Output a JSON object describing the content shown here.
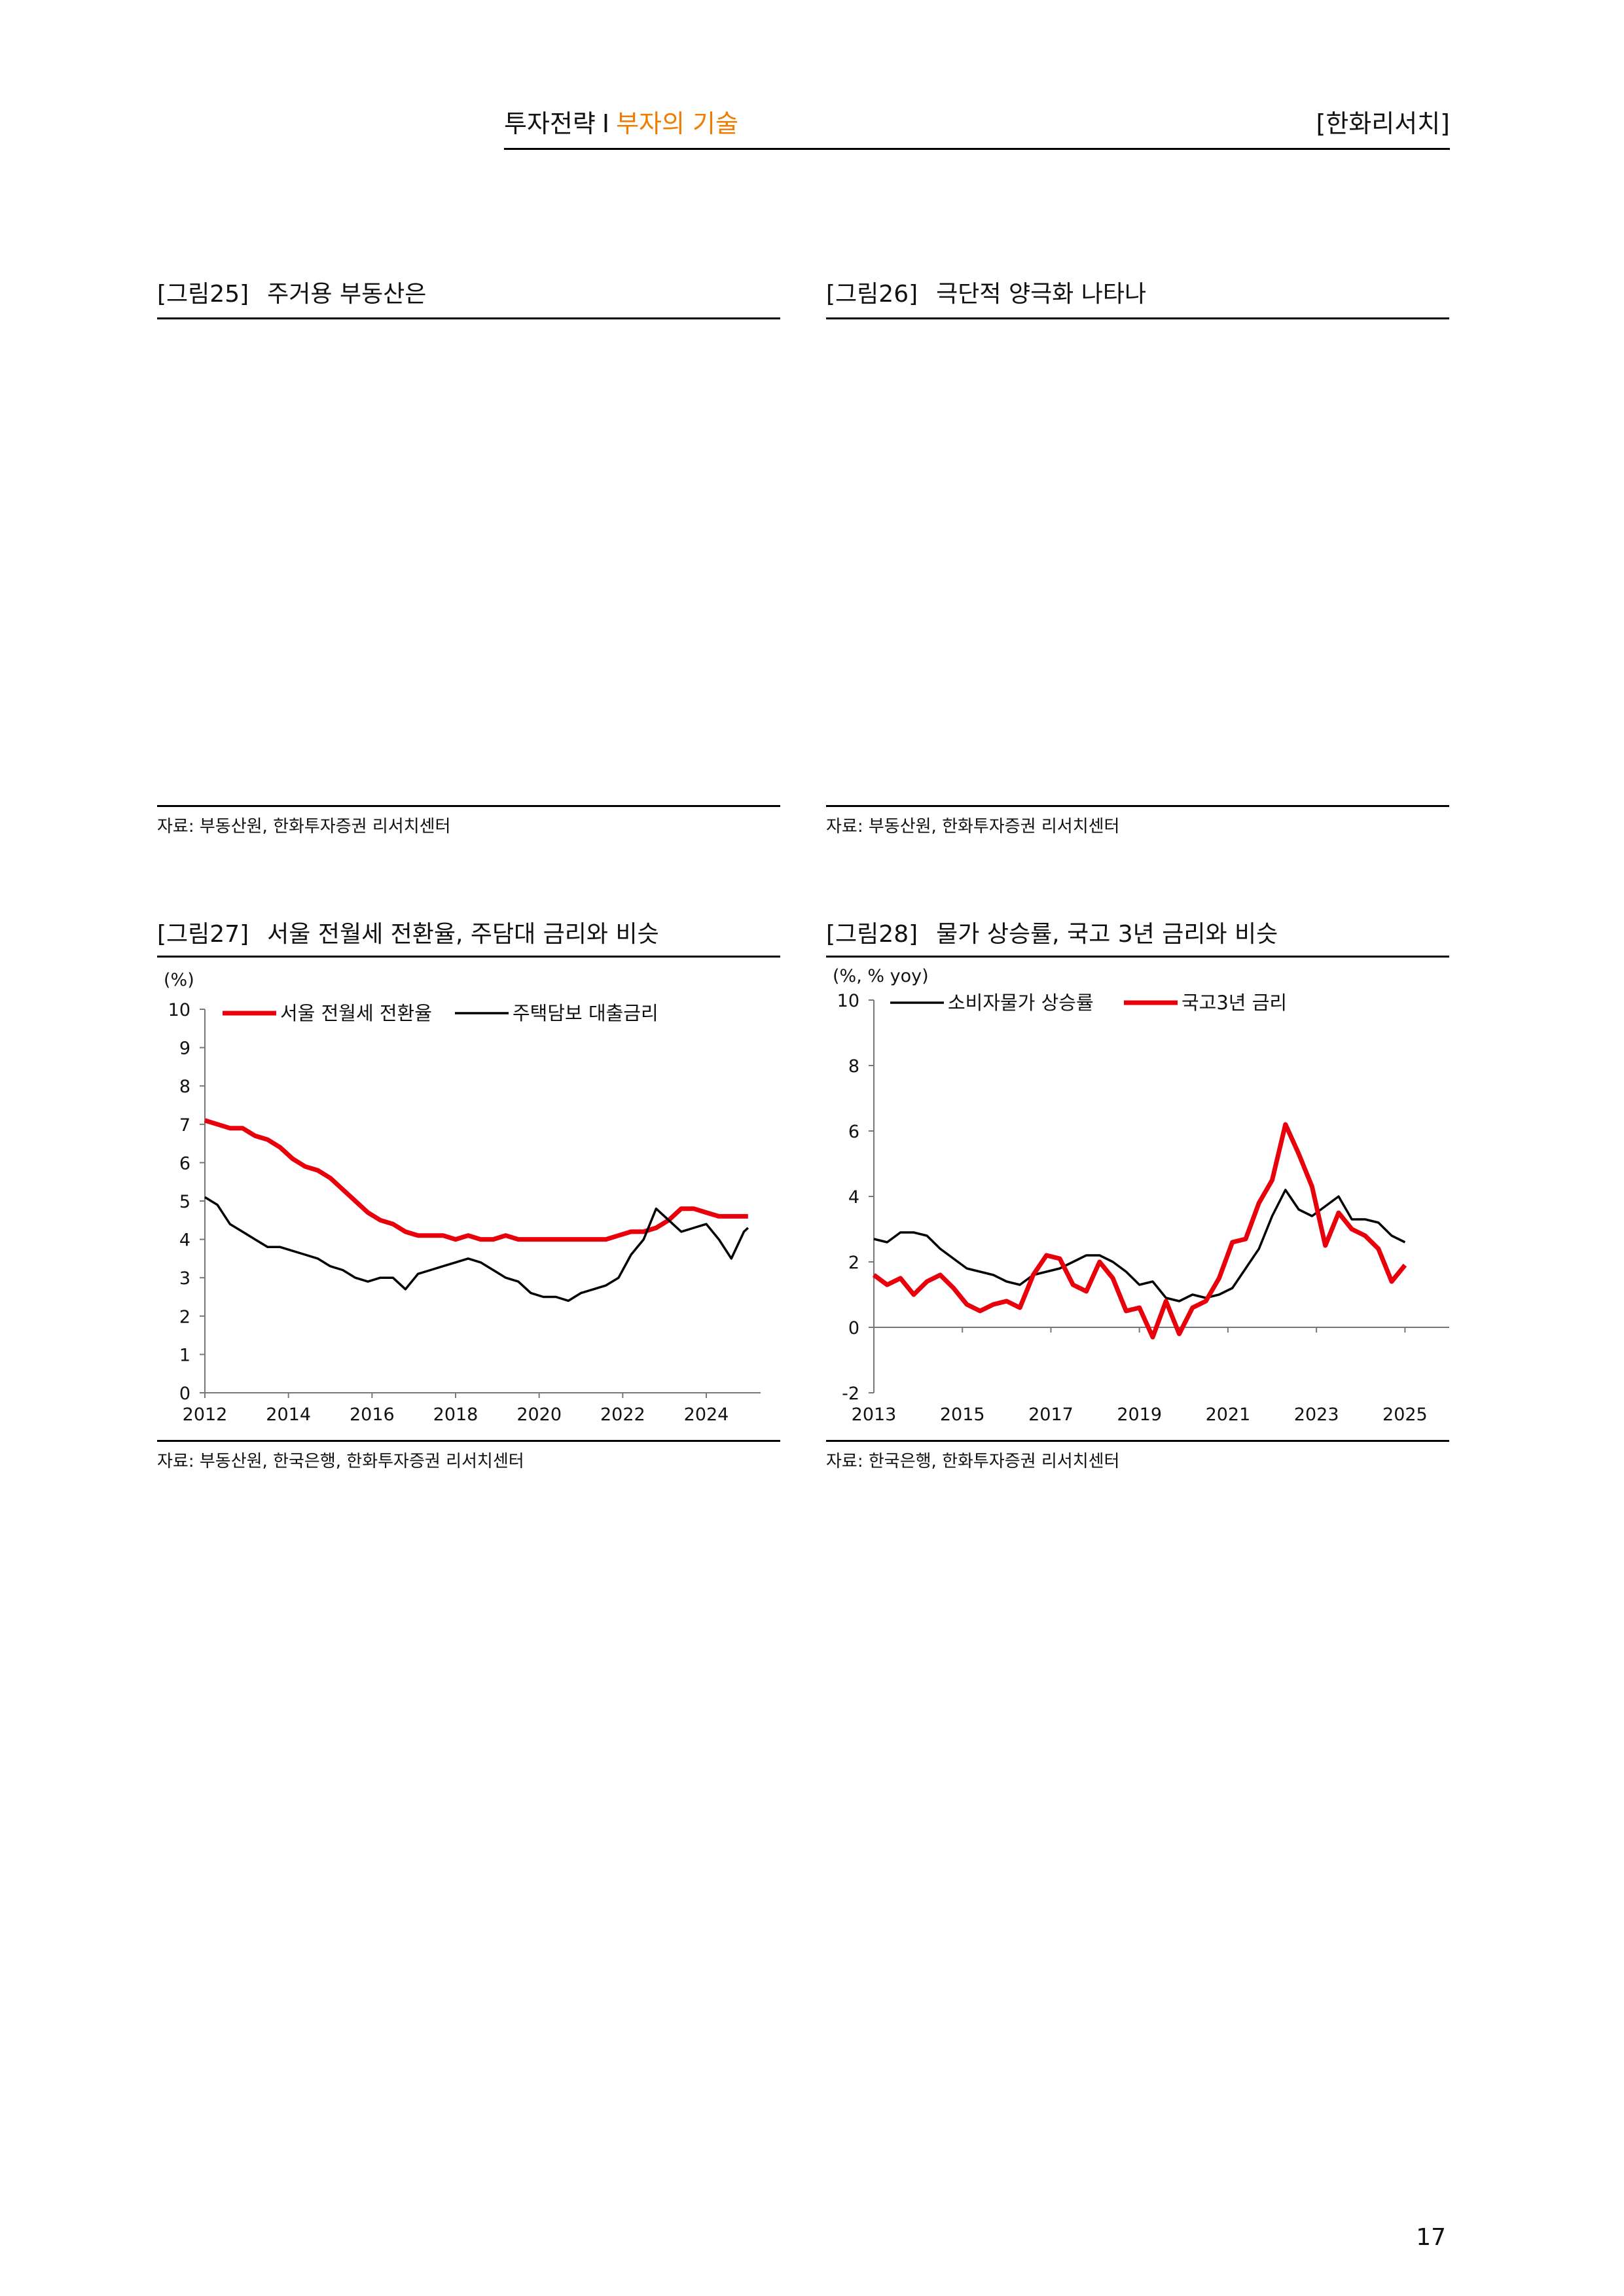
{
  "header": {
    "section": "투자전략",
    "separator": "I",
    "subtitle": "부자의 기술",
    "brand": "[한화리서치]"
  },
  "page_number": "17",
  "figures": [
    {
      "num": "[그림25]",
      "title": "주거용 부동산은",
      "source": "자료: 부동산원, 한화투자증권 리서치센터"
    },
    {
      "num": "[그림26]",
      "title": "극단적 양극화 나타나",
      "source": "자료: 부동산원, 한화투자증권 리서치센터"
    },
    {
      "num": "[그림27]",
      "title": "서울 전월세 전환율, 주담대 금리와 비슷",
      "source": "자료: 부동산원, 한국은행, 한화투자증권 리서치센터"
    },
    {
      "num": "[그림28]",
      "title": "물가 상승률, 국고 3년 금리와 비슷",
      "source": "자료: 한국은행, 한화투자증권 리서치센터"
    }
  ],
  "chart_data": [
    {
      "type": "line",
      "unit": "(%)",
      "ylim": [
        0,
        10
      ],
      "yticks": [
        0,
        1,
        2,
        3,
        4,
        5,
        6,
        7,
        8,
        9,
        10
      ],
      "xlim": [
        2012,
        2025.3
      ],
      "xticks": [
        "2012",
        "2014",
        "2016",
        "2018",
        "2020",
        "2022",
        "2024"
      ],
      "legend_position": "top",
      "series": [
        {
          "name": "서울 전월세 전환율",
          "color": "#e8000b",
          "x": [
            2012.0,
            2012.3,
            2012.6,
            2012.9,
            2013.2,
            2013.5,
            2013.8,
            2014.1,
            2014.4,
            2014.7,
            2015.0,
            2015.3,
            2015.6,
            2015.9,
            2016.2,
            2016.5,
            2016.8,
            2017.1,
            2017.4,
            2017.7,
            2018.0,
            2018.3,
            2018.6,
            2018.9,
            2019.2,
            2019.5,
            2019.8,
            2020.1,
            2020.4,
            2020.7,
            2021.0,
            2021.3,
            2021.6,
            2021.9,
            2022.2,
            2022.5,
            2022.8,
            2023.1,
            2023.4,
            2023.7,
            2024.0,
            2024.3,
            2024.6,
            2024.9,
            2025.0
          ],
          "y": [
            7.1,
            7.0,
            6.9,
            6.9,
            6.7,
            6.6,
            6.4,
            6.1,
            5.9,
            5.8,
            5.6,
            5.3,
            5.0,
            4.7,
            4.5,
            4.4,
            4.2,
            4.1,
            4.1,
            4.1,
            4.0,
            4.1,
            4.0,
            4.0,
            4.1,
            4.0,
            4.0,
            4.0,
            4.0,
            4.0,
            4.0,
            4.0,
            4.0,
            4.1,
            4.2,
            4.2,
            4.3,
            4.5,
            4.8,
            4.8,
            4.7,
            4.6,
            4.6,
            4.6,
            4.6
          ]
        },
        {
          "name": "주택담보 대출금리",
          "color": "#000000",
          "x": [
            2012.0,
            2012.3,
            2012.6,
            2012.9,
            2013.2,
            2013.5,
            2013.8,
            2014.1,
            2014.4,
            2014.7,
            2015.0,
            2015.3,
            2015.6,
            2015.9,
            2016.2,
            2016.5,
            2016.8,
            2017.1,
            2017.4,
            2017.7,
            2018.0,
            2018.3,
            2018.6,
            2018.9,
            2019.2,
            2019.5,
            2019.8,
            2020.1,
            2020.4,
            2020.7,
            2021.0,
            2021.3,
            2021.6,
            2021.9,
            2022.2,
            2022.5,
            2022.8,
            2023.1,
            2023.4,
            2023.7,
            2024.0,
            2024.3,
            2024.6,
            2024.9,
            2025.0
          ],
          "y": [
            5.1,
            4.9,
            4.4,
            4.2,
            4.0,
            3.8,
            3.8,
            3.7,
            3.6,
            3.5,
            3.3,
            3.2,
            3.0,
            2.9,
            3.0,
            3.0,
            2.7,
            3.1,
            3.2,
            3.3,
            3.4,
            3.5,
            3.4,
            3.2,
            3.0,
            2.9,
            2.6,
            2.5,
            2.5,
            2.4,
            2.6,
            2.7,
            2.8,
            3.0,
            3.6,
            4.0,
            4.8,
            4.5,
            4.2,
            4.3,
            4.4,
            4.0,
            3.5,
            4.2,
            4.3
          ]
        }
      ]
    },
    {
      "type": "line",
      "unit": "(%, % yoy)",
      "ylim": [
        -2,
        10
      ],
      "yticks": [
        -2,
        0,
        2,
        4,
        6,
        8,
        10
      ],
      "xlim": [
        2013,
        2026
      ],
      "xticks": [
        "2013",
        "2015",
        "2017",
        "2019",
        "2021",
        "2023",
        "2025"
      ],
      "legend_position": "top",
      "series": [
        {
          "name": "소비자물가 상승률",
          "color": "#000000",
          "x": [
            2013.0,
            2013.3,
            2013.6,
            2013.9,
            2014.2,
            2014.5,
            2014.8,
            2015.1,
            2015.4,
            2015.7,
            2016.0,
            2016.3,
            2016.6,
            2016.9,
            2017.2,
            2017.5,
            2017.8,
            2018.1,
            2018.4,
            2018.7,
            2019.0,
            2019.3,
            2019.6,
            2019.9,
            2020.2,
            2020.5,
            2020.8,
            2021.1,
            2021.4,
            2021.7,
            2022.0,
            2022.3,
            2022.6,
            2022.9,
            2023.2,
            2023.5,
            2023.8,
            2024.1,
            2024.4,
            2024.7,
            2025.0
          ],
          "y": [
            2.7,
            2.6,
            2.9,
            2.9,
            2.8,
            2.4,
            2.1,
            1.8,
            1.7,
            1.6,
            1.4,
            1.3,
            1.6,
            1.7,
            1.8,
            2.0,
            2.2,
            2.2,
            2.0,
            1.7,
            1.3,
            1.4,
            0.9,
            0.8,
            1.0,
            0.9,
            1.0,
            1.2,
            1.8,
            2.4,
            3.4,
            4.2,
            3.6,
            3.4,
            3.7,
            4.0,
            3.3,
            3.3,
            3.2,
            2.8,
            2.6
          ]
        },
        {
          "name": "국고3년 금리",
          "color": "#e8000b",
          "x": [
            2013.0,
            2013.3,
            2013.6,
            2013.9,
            2014.2,
            2014.5,
            2014.8,
            2015.1,
            2015.4,
            2015.7,
            2016.0,
            2016.3,
            2016.6,
            2016.9,
            2017.2,
            2017.5,
            2017.8,
            2018.1,
            2018.4,
            2018.7,
            2019.0,
            2019.3,
            2019.6,
            2019.9,
            2020.2,
            2020.5,
            2020.8,
            2021.1,
            2021.4,
            2021.7,
            2022.0,
            2022.3,
            2022.6,
            2022.9,
            2023.2,
            2023.5,
            2023.8,
            2024.1,
            2024.4,
            2024.7,
            2025.0
          ],
          "y": [
            1.6,
            1.3,
            1.5,
            1.0,
            1.4,
            1.6,
            1.2,
            0.7,
            0.5,
            0.7,
            0.8,
            0.6,
            1.6,
            2.2,
            2.1,
            1.3,
            1.1,
            2.0,
            1.5,
            0.5,
            0.6,
            -0.3,
            0.8,
            -0.2,
            0.6,
            0.8,
            1.5,
            2.6,
            2.7,
            3.8,
            4.5,
            6.2,
            5.3,
            4.3,
            2.5,
            3.5,
            3.0,
            2.8,
            2.4,
            1.4,
            1.9
          ]
        }
      ]
    }
  ]
}
